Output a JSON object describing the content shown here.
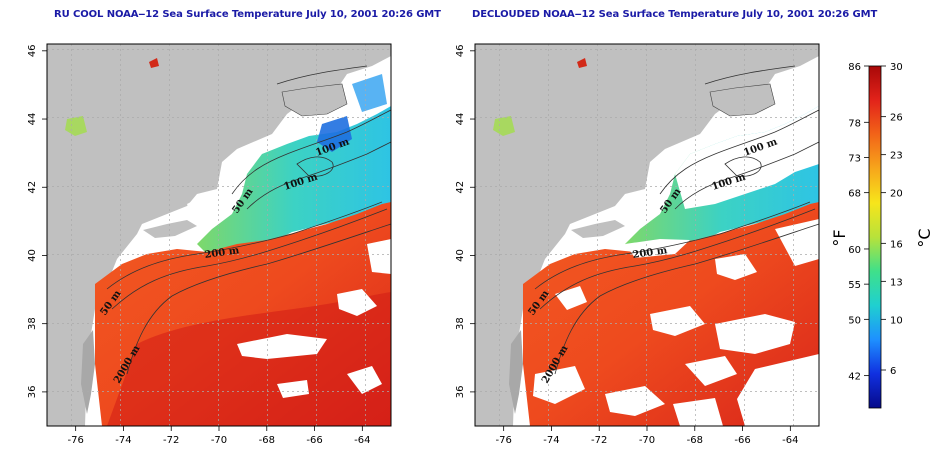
{
  "titles": {
    "left": "RU COOL NOAA‒12 Sea Surface Temperature July 10, 2001 20:26 GMT",
    "right": "DECLOUDED NOAA‒12 Sea Surface Temperature July 10, 2001 20:26 GMT"
  },
  "axes": {
    "lon_ticks": [
      "-76",
      "-74",
      "-72",
      "-70",
      "-68",
      "-66",
      "-64"
    ],
    "lat_ticks": [
      "36",
      "38",
      "40",
      "42",
      "44",
      "46"
    ],
    "lon_range": [
      -77.2,
      -62.8
    ],
    "lat_range": [
      35.0,
      46.2
    ],
    "grid": "dotted"
  },
  "contour_labels": {
    "left": [
      "100 m",
      "100 m",
      "50 m",
      "200 m",
      "50 m",
      "2000 m"
    ],
    "right": [
      "100 m",
      "100 m",
      "50 m",
      "200 m",
      "50 m",
      "2000 m"
    ]
  },
  "colorbar": {
    "fahrenheit_label": "°F",
    "celsius_label": "°C",
    "fahrenheit_ticks": [
      "86",
      "78",
      "73",
      "68",
      "60",
      "55",
      "50",
      "42"
    ],
    "celsius_ticks": [
      "30",
      "26",
      "23",
      "20",
      "16",
      "13",
      "10",
      "6"
    ],
    "range_c": [
      3,
      30
    ],
    "colors": [
      "#060a8a",
      "#1030e0",
      "#1e90ff",
      "#1fd0d0",
      "#3fe08a",
      "#b8e23a",
      "#f7e51b",
      "#f7a61b",
      "#f26418",
      "#e2231a",
      "#a80808"
    ]
  },
  "colors": {
    "land": "#c0c0c0",
    "warm": "#f04a1e",
    "hot": "#d81c14",
    "cool": "#38d0c0",
    "title": "#1a1aa6"
  }
}
